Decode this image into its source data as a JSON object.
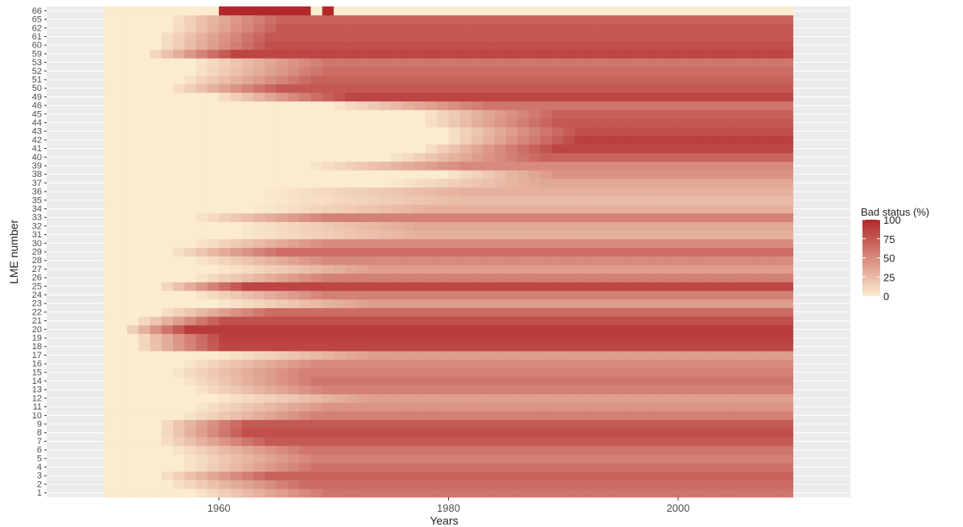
{
  "chart_data": {
    "type": "heatmap",
    "title": "",
    "xlabel": "Years",
    "ylabel": "LME number",
    "x_range": [
      1950,
      2010
    ],
    "x_ticks": [
      1960,
      1980,
      2000
    ],
    "y_categories": [
      "1",
      "2",
      "3",
      "4",
      "5",
      "6",
      "7",
      "8",
      "9",
      "10",
      "11",
      "12",
      "13",
      "14",
      "15",
      "16",
      "17",
      "18",
      "19",
      "20",
      "21",
      "22",
      "23",
      "24",
      "25",
      "26",
      "27",
      "28",
      "29",
      "30",
      "31",
      "32",
      "33",
      "34",
      "35",
      "36",
      "37",
      "38",
      "39",
      "40",
      "41",
      "42",
      "43",
      "44",
      "45",
      "46",
      "49",
      "50",
      "51",
      "52",
      "53",
      "59",
      "60",
      "61",
      "62",
      "65",
      "66"
    ],
    "rows": [
      {
        "lme": "1",
        "from": 1950,
        "to": 2010,
        "start": 1958,
        "ramp": 12,
        "end": 60
      },
      {
        "lme": "2",
        "from": 1950,
        "to": 2010,
        "start": 1956,
        "ramp": 12,
        "end": 65
      },
      {
        "lme": "3",
        "from": 1950,
        "to": 2010,
        "start": 1955,
        "ramp": 10,
        "end": 70
      },
      {
        "lme": "4",
        "from": 1950,
        "to": 2010,
        "start": 1957,
        "ramp": 12,
        "end": 62
      },
      {
        "lme": "5",
        "from": 1950,
        "to": 2010,
        "start": 1957,
        "ramp": 12,
        "end": 55
      },
      {
        "lme": "6",
        "from": 1950,
        "to": 2010,
        "start": 1956,
        "ramp": 12,
        "end": 60
      },
      {
        "lme": "7",
        "from": 1950,
        "to": 2010,
        "start": 1955,
        "ramp": 10,
        "end": 75
      },
      {
        "lme": "8",
        "from": 1950,
        "to": 2010,
        "start": 1955,
        "ramp": 8,
        "end": 80
      },
      {
        "lme": "9",
        "from": 1950,
        "to": 2010,
        "start": 1955,
        "ramp": 8,
        "end": 75
      },
      {
        "lme": "10",
        "from": 1950,
        "to": 2010,
        "start": 1957,
        "ramp": 12,
        "end": 55
      },
      {
        "lme": "11",
        "from": 1950,
        "to": 2010,
        "start": 1958,
        "ramp": 12,
        "end": 45
      },
      {
        "lme": "12",
        "from": 1950,
        "to": 2010,
        "start": 1960,
        "ramp": 14,
        "end": 40
      },
      {
        "lme": "13",
        "from": 1950,
        "to": 2010,
        "start": 1958,
        "ramp": 12,
        "end": 55
      },
      {
        "lme": "14",
        "from": 1950,
        "to": 2010,
        "start": 1957,
        "ramp": 12,
        "end": 60
      },
      {
        "lme": "15",
        "from": 1950,
        "to": 2010,
        "start": 1956,
        "ramp": 12,
        "end": 55
      },
      {
        "lme": "16",
        "from": 1950,
        "to": 2010,
        "start": 1957,
        "ramp": 12,
        "end": 50
      },
      {
        "lme": "17",
        "from": 1950,
        "to": 2010,
        "start": 1960,
        "ramp": 14,
        "end": 40
      },
      {
        "lme": "18",
        "from": 1950,
        "to": 2010,
        "start": 1953,
        "ramp": 8,
        "end": 85
      },
      {
        "lme": "19",
        "from": 1950,
        "to": 2010,
        "start": 1953,
        "ramp": 8,
        "end": 88
      },
      {
        "lme": "20",
        "from": 1950,
        "to": 2010,
        "start": 1952,
        "ramp": 6,
        "end": 90
      },
      {
        "lme": "21",
        "from": 1950,
        "to": 2010,
        "start": 1953,
        "ramp": 8,
        "end": 80
      },
      {
        "lme": "22",
        "from": 1950,
        "to": 2010,
        "start": 1955,
        "ramp": 10,
        "end": 65
      },
      {
        "lme": "23",
        "from": 1950,
        "to": 2010,
        "start": 1960,
        "ramp": 14,
        "end": 40
      },
      {
        "lme": "24",
        "from": 1950,
        "to": 2010,
        "start": 1958,
        "ramp": 12,
        "end": 55
      },
      {
        "lme": "25",
        "from": 1950,
        "to": 2010,
        "start": 1955,
        "ramp": 8,
        "end": 85
      },
      {
        "lme": "26",
        "from": 1950,
        "to": 2010,
        "start": 1958,
        "ramp": 12,
        "end": 55
      },
      {
        "lme": "27",
        "from": 1950,
        "to": 2010,
        "start": 1960,
        "ramp": 14,
        "end": 40
      },
      {
        "lme": "28",
        "from": 1950,
        "to": 2010,
        "start": 1958,
        "ramp": 12,
        "end": 50
      },
      {
        "lme": "29",
        "from": 1950,
        "to": 2010,
        "start": 1956,
        "ramp": 10,
        "end": 65
      },
      {
        "lme": "30",
        "from": 1950,
        "to": 2010,
        "start": 1958,
        "ramp": 12,
        "end": 50
      },
      {
        "lme": "31",
        "from": 1950,
        "to": 2010,
        "start": 1962,
        "ramp": 16,
        "end": 30
      },
      {
        "lme": "32",
        "from": 1950,
        "to": 2010,
        "start": 1962,
        "ramp": 16,
        "end": 35
      },
      {
        "lme": "33",
        "from": 1950,
        "to": 2010,
        "start": 1958,
        "ramp": 12,
        "end": 55
      },
      {
        "lme": "34",
        "from": 1950,
        "to": 2010,
        "start": 1963,
        "ramp": 16,
        "end": 30
      },
      {
        "lme": "35",
        "from": 1950,
        "to": 2010,
        "start": 1964,
        "ramp": 18,
        "end": 25
      },
      {
        "lme": "36",
        "from": 1950,
        "to": 2010,
        "start": 1964,
        "ramp": 18,
        "end": 30
      },
      {
        "lme": "37",
        "from": 1950,
        "to": 2010,
        "start": 1975,
        "ramp": 14,
        "end": 35
      },
      {
        "lme": "38",
        "from": 1950,
        "to": 2010,
        "start": 1980,
        "ramp": 10,
        "end": 45
      },
      {
        "lme": "39",
        "from": 1950,
        "to": 2010,
        "start": 1968,
        "ramp": 14,
        "end": 50
      },
      {
        "lme": "40",
        "from": 1950,
        "to": 2010,
        "start": 1975,
        "ramp": 14,
        "end": 70
      },
      {
        "lme": "41",
        "from": 1950,
        "to": 2010,
        "start": 1978,
        "ramp": 12,
        "end": 85
      },
      {
        "lme": "42",
        "from": 1950,
        "to": 2010,
        "start": 1980,
        "ramp": 12,
        "end": 88
      },
      {
        "lme": "43",
        "from": 1950,
        "to": 2010,
        "start": 1980,
        "ramp": 12,
        "end": 80
      },
      {
        "lme": "44",
        "from": 1950,
        "to": 2010,
        "start": 1978,
        "ramp": 12,
        "end": 75
      },
      {
        "lme": "45",
        "from": 1950,
        "to": 2010,
        "start": 1978,
        "ramp": 12,
        "end": 70
      },
      {
        "lme": "46",
        "from": 1950,
        "to": 2010,
        "start": 1970,
        "ramp": 14,
        "end": 60
      },
      {
        "lme": "49",
        "from": 1950,
        "to": 2010,
        "start": 1960,
        "ramp": 12,
        "end": 85
      },
      {
        "lme": "50",
        "from": 1950,
        "to": 2010,
        "start": 1956,
        "ramp": 10,
        "end": 75
      },
      {
        "lme": "51",
        "from": 1950,
        "to": 2010,
        "start": 1957,
        "ramp": 12,
        "end": 70
      },
      {
        "lme": "52",
        "from": 1950,
        "to": 2010,
        "start": 1958,
        "ramp": 12,
        "end": 65
      },
      {
        "lme": "53",
        "from": 1950,
        "to": 2010,
        "start": 1958,
        "ramp": 12,
        "end": 60
      },
      {
        "lme": "59",
        "from": 1950,
        "to": 2010,
        "start": 1954,
        "ramp": 8,
        "end": 85
      },
      {
        "lme": "60",
        "from": 1950,
        "to": 2010,
        "start": 1955,
        "ramp": 10,
        "end": 80
      },
      {
        "lme": "61",
        "from": 1950,
        "to": 2010,
        "start": 1955,
        "ramp": 10,
        "end": 75
      },
      {
        "lme": "62",
        "from": 1950,
        "to": 2010,
        "start": 1956,
        "ramp": 10,
        "end": 75
      },
      {
        "lme": "65",
        "from": 1950,
        "to": 2010,
        "start": 1956,
        "ramp": 10,
        "end": 70
      },
      {
        "lme": "66",
        "from": 1950,
        "to": 2010,
        "start": 2011,
        "ramp": 1,
        "end": 0,
        "segments": [
          {
            "from": 1960,
            "to": 1968,
            "value": 100
          },
          {
            "from": 1969,
            "to": 1970,
            "value": 100
          }
        ]
      }
    ],
    "legend": {
      "title": "Bad status (%)",
      "position": "right",
      "ticks": [
        0,
        25,
        50,
        75,
        100
      ],
      "color_low": "#fbebd0",
      "color_high": "#b2282a",
      "range": [
        0,
        100
      ]
    },
    "panel_background": "#ebebeb",
    "grid": true
  }
}
